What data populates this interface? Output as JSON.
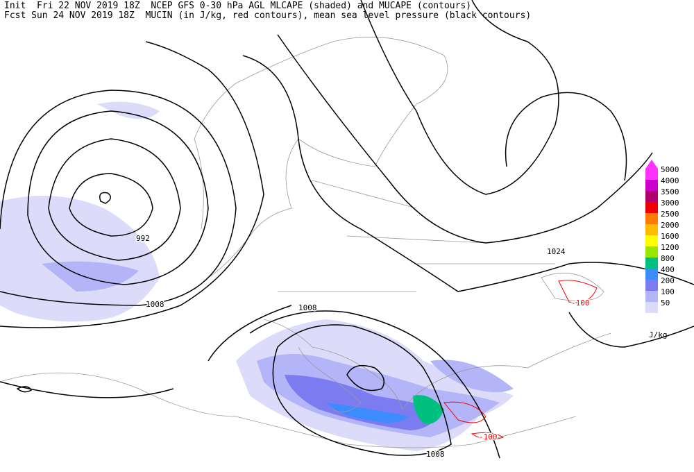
{
  "header": {
    "lines": [
      "Init  Fri 22 NOV 2019 18Z  NCEP GFS 0-30 hPa AGL MLCAPE (shaded) and MUCAPE (contours)",
      "Fcst Sun 24 NOV 2019 18Z  MUCIN (in J/kg, red contours), mean sea level pressure (black contours)"
    ]
  },
  "legend": {
    "unit": "J/kg",
    "levels": [
      {
        "value": 5000,
        "color": "#ff33ff"
      },
      {
        "value": 4000,
        "color": "#cc00cc"
      },
      {
        "value": 3500,
        "color": "#b0006e"
      },
      {
        "value": 3000,
        "color": "#ee0000"
      },
      {
        "value": 2500,
        "color": "#ff7a00"
      },
      {
        "value": 2000,
        "color": "#ffbb00"
      },
      {
        "value": 1600,
        "color": "#ffff00"
      },
      {
        "value": 1200,
        "color": "#99e600"
      },
      {
        "value": 800,
        "color": "#00c080"
      },
      {
        "value": 400,
        "color": "#3c8cff"
      },
      {
        "value": 200,
        "color": "#7c7cf0"
      },
      {
        "value": 100,
        "color": "#b4b4f8"
      },
      {
        "value": 50,
        "color": "#dcdcfa"
      }
    ]
  },
  "contour_labels": [
    "992",
    "1008",
    "1008",
    "1024",
    "1008",
    "-100",
    "-100"
  ]
}
